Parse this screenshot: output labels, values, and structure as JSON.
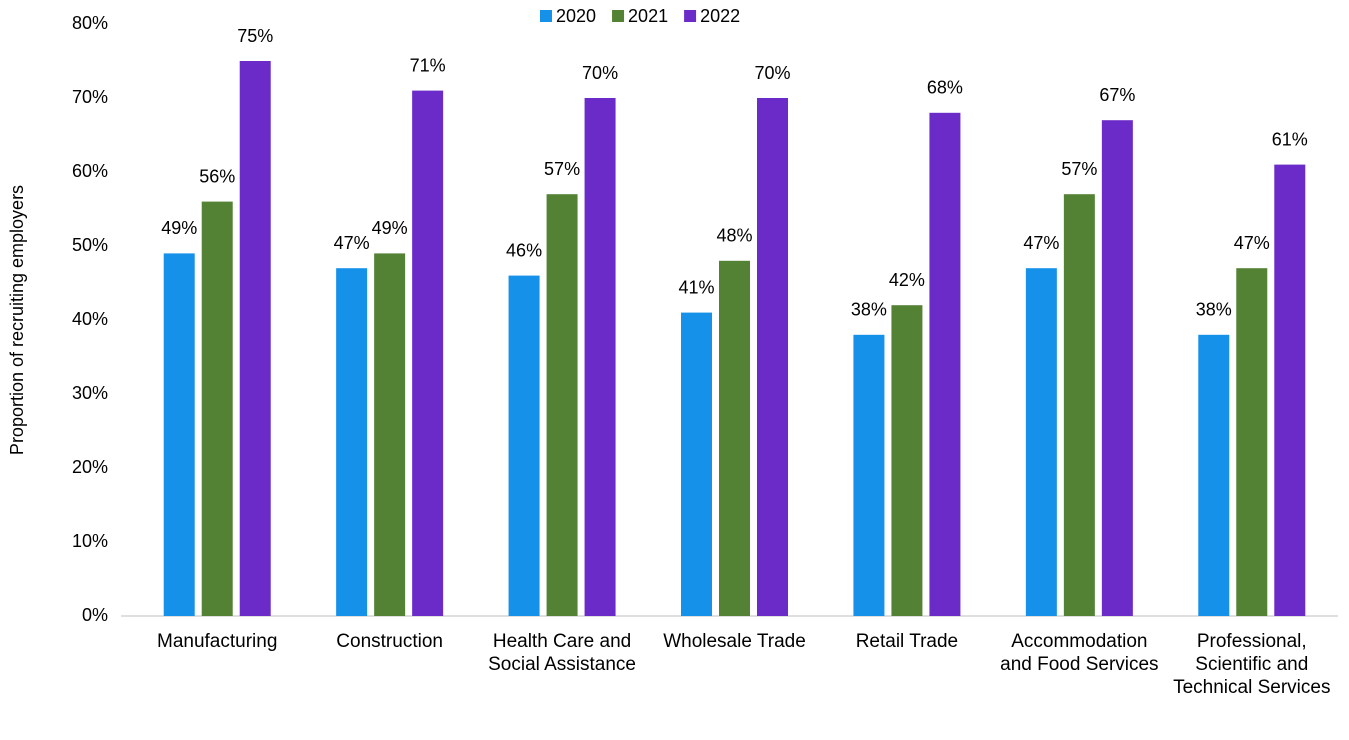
{
  "chart_data": {
    "type": "bar",
    "y_label": "Proportion of recruiting employers",
    "categories": [
      "Manufacturing",
      "Construction",
      "Health Care and Social Assistance",
      "Wholesale Trade",
      "Retail Trade",
      "Accommodation and Food Services",
      "Professional, Scientific and Technical Services"
    ],
    "series": [
      {
        "name": "2020",
        "color": "#1591ea",
        "values": [
          49,
          47,
          46,
          41,
          38,
          47,
          38
        ],
        "value_labels": [
          "49%",
          "47%",
          "46%",
          "41%",
          "38%",
          "47%",
          "38%"
        ]
      },
      {
        "name": "2021",
        "color": "#548235",
        "values": [
          56,
          49,
          57,
          48,
          42,
          57,
          47
        ],
        "value_labels": [
          "56%",
          "49%",
          "57%",
          "48%",
          "42%",
          "57%",
          "47%"
        ]
      },
      {
        "name": "2022",
        "color": "#6a2bc8",
        "values": [
          75,
          71,
          70,
          70,
          68,
          67,
          61
        ],
        "value_labels": [
          "75%",
          "71%",
          "70%",
          "70%",
          "68%",
          "67%",
          "61%"
        ]
      }
    ],
    "ylim": [
      0,
      80
    ],
    "yticks": [
      {
        "value": 0,
        "label": "0%"
      },
      {
        "value": 10,
        "label": "10%"
      },
      {
        "value": 20,
        "label": "20%"
      },
      {
        "value": 30,
        "label": "30%"
      },
      {
        "value": 40,
        "label": "40%"
      },
      {
        "value": 50,
        "label": "50%"
      },
      {
        "value": 60,
        "label": "60%"
      },
      {
        "value": 70,
        "label": "70%"
      },
      {
        "value": 80,
        "label": "80%"
      }
    ],
    "grid": false,
    "legend": "top"
  }
}
